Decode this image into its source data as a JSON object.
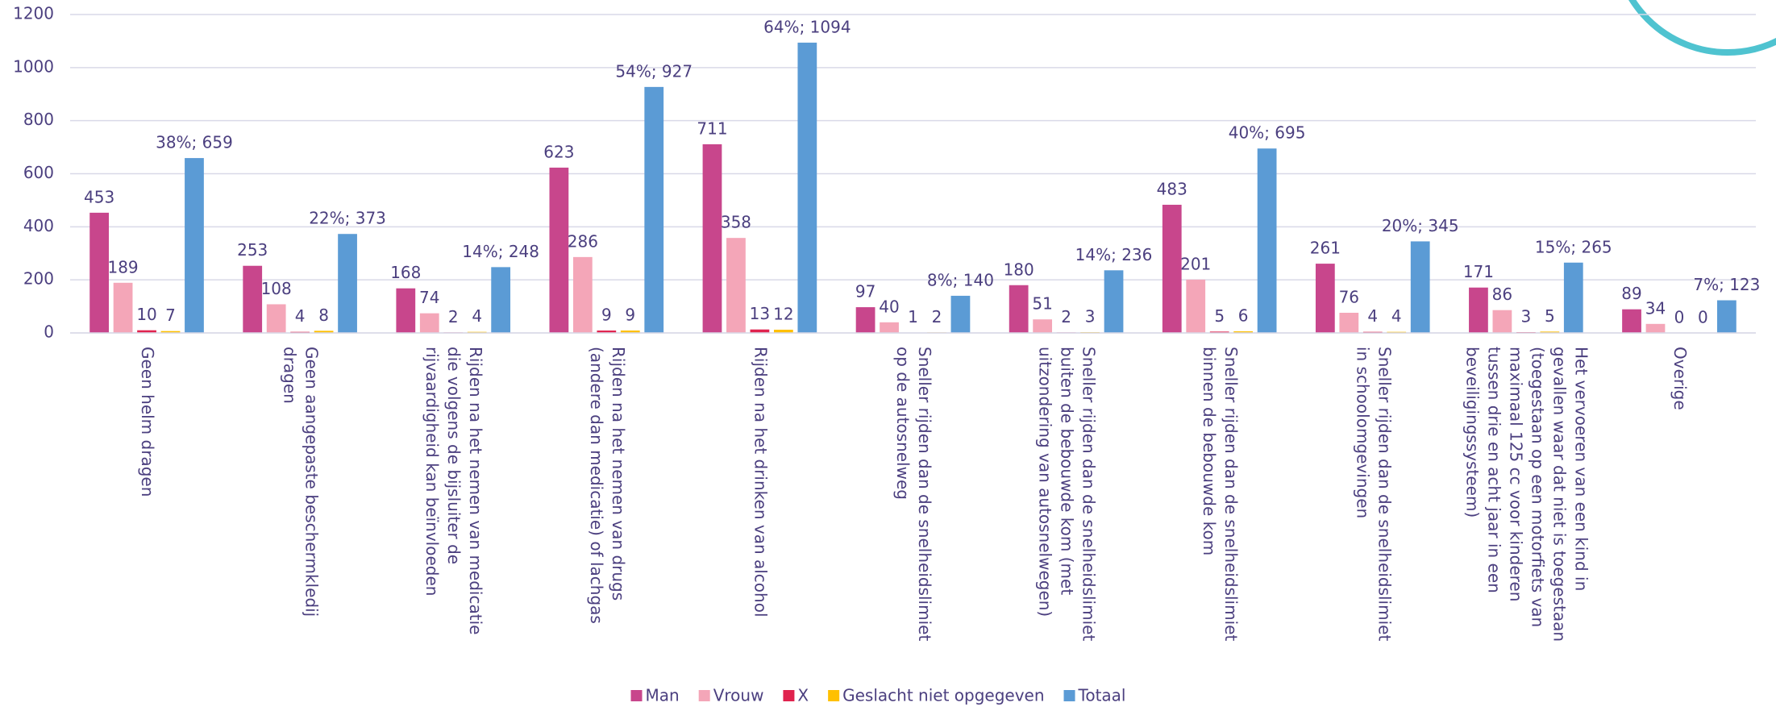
{
  "chart_data": {
    "type": "bar",
    "categories": [
      "Geen helm dragen",
      "Geen aangepaste beschermkledij\ndragen",
      "Rijden na het nemen van medicatie\ndie volgens de bijsluiter de\nrijvaardigheid kan beïnvloeden",
      "Rijden na het nemen van drugs\n(andere dan medicatie) of lachgas",
      "Rijden na het drinken van alcohol",
      "Sneller rijden dan de snelheidslimiet\nop de autosnelweg",
      "Sneller rijden dan de snelheidslimiet\nbuiten de bebouwde kom (met\nuitzondering van autosnelwegen)",
      "Sneller rijden dan de snelheidslimiet\nbinnen de bebouwde kom",
      "Sneller rijden dan de snelheidslimiet\nin schoolomgevingen",
      "Het vervoeren van een kind in\ngevallen waar dat niet is toegestaan\n(toegestaan op een motorfiets van\nmaximaal 125 cc voor kinderen\ntussen drie en acht jaar in een\nbeveiligingssysteem)",
      "Overige"
    ],
    "series": [
      {
        "name": "Man",
        "color": "#c8468c",
        "values": [
          453,
          253,
          168,
          623,
          711,
          97,
          180,
          483,
          261,
          171,
          89
        ]
      },
      {
        "name": "Vrouw",
        "color": "#f4a6b8",
        "values": [
          189,
          108,
          74,
          286,
          358,
          40,
          51,
          201,
          76,
          86,
          34
        ]
      },
      {
        "name": "X",
        "color": "#e0234e",
        "values": [
          10,
          4,
          2,
          9,
          13,
          1,
          2,
          5,
          4,
          3,
          0
        ]
      },
      {
        "name": "Geslacht niet opgegeven",
        "color": "#ffc000",
        "values": [
          7,
          8,
          4,
          9,
          12,
          2,
          3,
          6,
          4,
          5,
          0
        ]
      },
      {
        "name": "Totaal",
        "color": "#5b9bd5",
        "values": [
          659,
          373,
          248,
          927,
          1094,
          140,
          236,
          695,
          345,
          265,
          123
        ],
        "value_labels": [
          "38%; 659",
          "22%; 373",
          "14%; 248",
          "54%; 927",
          "64%; 1094",
          "8%; 140",
          "14%; 236",
          "40%; 695",
          "20%; 345",
          "15%; 265",
          "7%; 123"
        ]
      }
    ],
    "ylim": [
      0,
      1200
    ],
    "yticks": [
      0,
      200,
      400,
      600,
      800,
      1000,
      1200
    ],
    "grid": true,
    "legend": "bottom"
  }
}
